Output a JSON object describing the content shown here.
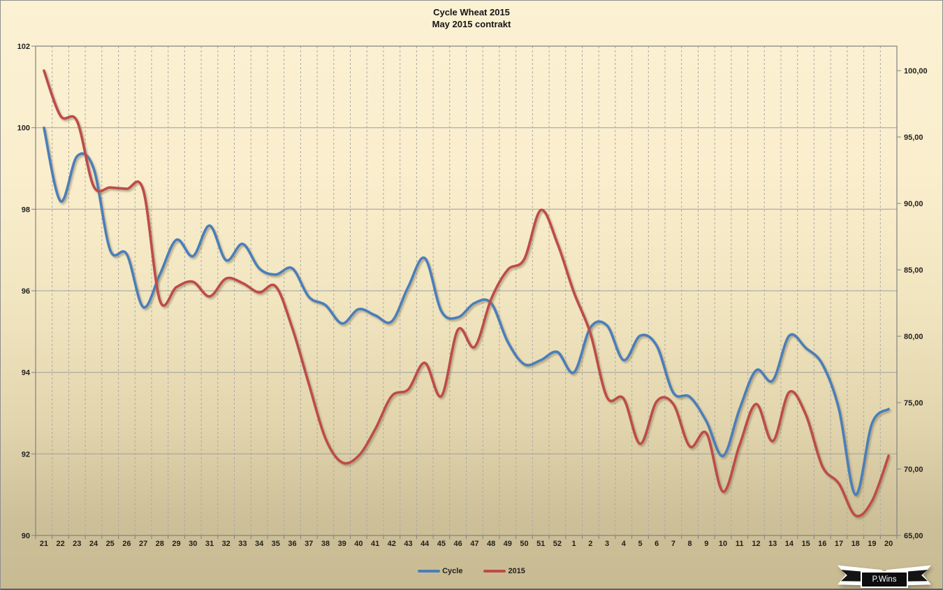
{
  "title": {
    "line1": "Cycle Wheat 2015",
    "line2": "May 2015 contrakt"
  },
  "watermark": {
    "text": "P.Wins"
  },
  "axes": {
    "left": {
      "labels": [
        "102",
        "100",
        "98",
        "96",
        "94",
        "92",
        "90"
      ],
      "values": [
        102,
        100,
        98,
        96,
        94,
        92,
        90
      ]
    },
    "right": {
      "labels": [
        "100,00",
        "95,00",
        "90,00",
        "85,00",
        "80,00",
        "75,00",
        "70,00",
        "65,00"
      ],
      "values": [
        100,
        95,
        90,
        85,
        80,
        75,
        70,
        65
      ]
    }
  },
  "chart_data": {
    "type": "line",
    "title": "Cycle Wheat 2015",
    "subtitle": "May 2015 contrakt",
    "categories": [
      "21",
      "22",
      "23",
      "24",
      "25",
      "26",
      "27",
      "28",
      "29",
      "30",
      "31",
      "32",
      "33",
      "34",
      "35",
      "36",
      "37",
      "38",
      "39",
      "40",
      "41",
      "42",
      "43",
      "44",
      "45",
      "46",
      "47",
      "48",
      "49",
      "50",
      "51",
      "52",
      "1",
      "2",
      "3",
      "4",
      "5",
      "6",
      "7",
      "8",
      "9",
      "10",
      "11",
      "12",
      "13",
      "14",
      "15",
      "16",
      "17",
      "18",
      "19",
      "20"
    ],
    "x_axis_note": "calendar week numbers, week 21 through week 20 of following year",
    "left_ylim": [
      90,
      102
    ],
    "right_ylim": [
      65,
      100
    ],
    "grid": {
      "horizontal": "solid gray every 2 units of left axis",
      "vertical": "dashed gray at category boundaries"
    },
    "legend_position": "bottom-center",
    "smoothing": "smoothed lines",
    "series": [
      {
        "name": "Cycle",
        "axis": "left",
        "color": "#4a7ebb",
        "values": [
          100.0,
          98.2,
          99.3,
          99.0,
          97.0,
          96.9,
          95.6,
          96.4,
          97.25,
          96.85,
          97.6,
          96.75,
          97.15,
          96.55,
          96.4,
          96.55,
          95.85,
          95.65,
          95.2,
          95.55,
          95.4,
          95.25,
          96.1,
          96.8,
          95.5,
          95.35,
          95.7,
          95.7,
          94.75,
          94.2,
          94.3,
          94.5,
          94.0,
          95.1,
          95.15,
          94.3,
          94.9,
          94.65,
          93.5,
          93.4,
          92.8,
          91.95,
          93.1,
          94.05,
          93.8,
          94.9,
          94.6,
          94.2,
          93.1,
          91.0,
          92.75,
          93.1
        ]
      },
      {
        "name": "2015",
        "axis": "right",
        "color": "#be4b48",
        "values": [
          100.0,
          96.6,
          96.2,
          91.3,
          91.2,
          91.1,
          91.0,
          82.7,
          83.7,
          84.1,
          83.0,
          84.35,
          84.0,
          83.3,
          83.75,
          80.6,
          76.4,
          72.3,
          70.5,
          71.0,
          73.0,
          75.5,
          76.0,
          78.0,
          75.5,
          80.5,
          79.2,
          82.8,
          85.0,
          85.8,
          89.5,
          87.0,
          83.3,
          80.2,
          75.4,
          75.3,
          71.9,
          75.1,
          74.9,
          71.7,
          72.7,
          68.3,
          71.8,
          74.9,
          72.1,
          75.8,
          74.1,
          70.2,
          68.9,
          66.5,
          67.6,
          71.0
        ]
      }
    ]
  },
  "colors": {
    "background_top": "#fbf1d3",
    "background_bottom": "#c8bb92",
    "grid_solid": "#9d9d9d",
    "grid_dashed": "#a8a8a8",
    "plot_border": "#808080",
    "text": "#1f1f1f",
    "series_cycle": "#4a7ebb",
    "series_2015": "#be4b48"
  }
}
